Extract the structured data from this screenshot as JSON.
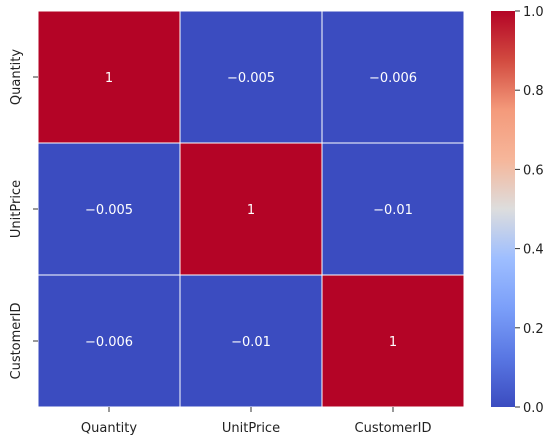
{
  "chart_data": {
    "type": "heatmap",
    "title": "",
    "xlabel": "",
    "ylabel": "",
    "x_categories": [
      "Quantity",
      "UnitPrice",
      "CustomerID"
    ],
    "y_categories": [
      "Quantity",
      "UnitPrice",
      "CustomerID"
    ],
    "values": [
      [
        1,
        -0.005,
        -0.006
      ],
      [
        -0.005,
        1,
        -0.01
      ],
      [
        -0.006,
        -0.01,
        1
      ]
    ],
    "annotations": [
      [
        "1",
        "−0.005",
        "−0.006"
      ],
      [
        "−0.005",
        "1",
        "−0.01"
      ],
      [
        "−0.006",
        "−0.01",
        "1"
      ]
    ],
    "colormap": "coolwarm",
    "colorbar": {
      "range": [
        0,
        1
      ],
      "ticks": [
        0.0,
        0.2,
        0.4,
        0.6,
        0.8,
        1.0
      ],
      "tick_labels": [
        "0.0",
        "0.2",
        "0.4",
        "0.6",
        "0.8",
        "1.0"
      ]
    },
    "colors": {
      "low": "#3b4cc0",
      "high": "#b40426",
      "cell_border": "#ffffff",
      "annotation_text": "#ffffff",
      "tick_text": "#222222"
    },
    "grid": false
  }
}
